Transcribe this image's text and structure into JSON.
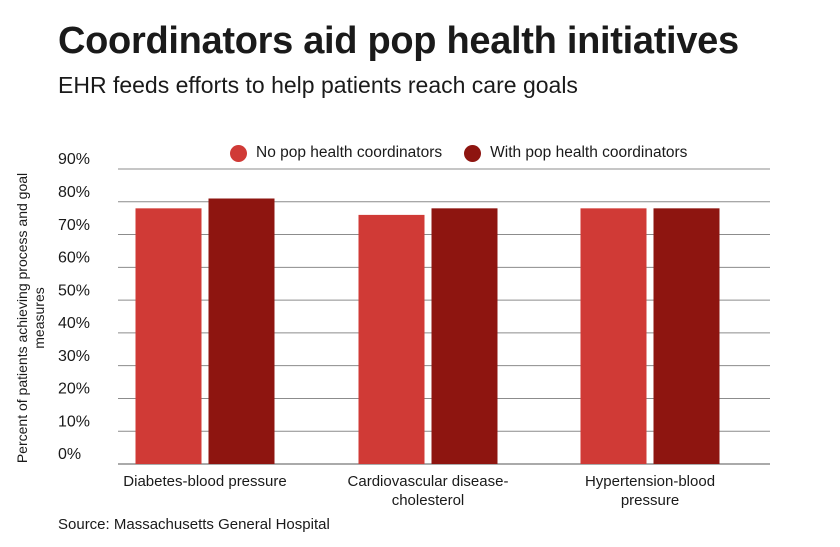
{
  "header": {
    "title": "Coordinators aid pop health initiatives",
    "subtitle": "EHR feeds efforts to help patients reach care goals"
  },
  "source": "Source: Massachusetts General Hospital",
  "colors": {
    "no_coordinators": "#d03a36",
    "with_coordinators": "#8e1510",
    "grid": "#8c8c8c"
  },
  "chart_data": {
    "type": "bar",
    "title": "Coordinators aid pop health initiatives",
    "subtitle": "EHR feeds efforts to help patients reach care goals",
    "xlabel": "",
    "ylabel": "Percent of patients achieving process and goal measures",
    "ylim": [
      0,
      90
    ],
    "yticks": [
      "0%",
      "10%",
      "20%",
      "30%",
      "40%",
      "50%",
      "60%",
      "70%",
      "80%",
      "90%"
    ],
    "categories": [
      [
        "Diabetes-blood pressure"
      ],
      [
        "Cardiovascular disease-",
        "cholesterol"
      ],
      [
        "Hypertension-blood",
        "pressure"
      ]
    ],
    "series": [
      {
        "name": "No pop health coordinators",
        "values": [
          78,
          76,
          78
        ]
      },
      {
        "name": "With pop health coordinators",
        "values": [
          81,
          78,
          78
        ]
      }
    ],
    "grid": true,
    "legend": "top"
  }
}
